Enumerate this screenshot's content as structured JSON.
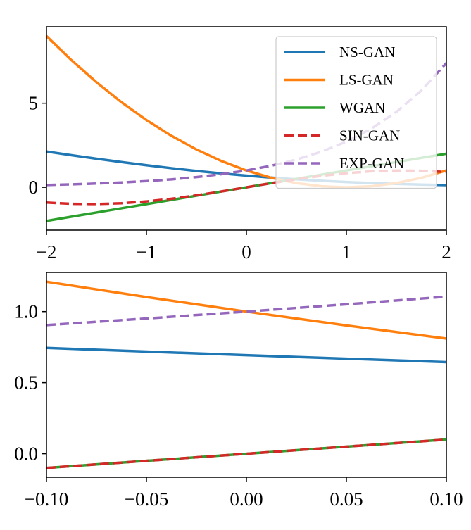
{
  "chart_data": [
    {
      "type": "line",
      "x": [
        -2,
        -1.75,
        -1.5,
        -1.25,
        -1,
        -0.75,
        -0.5,
        -0.25,
        0,
        0.25,
        0.5,
        0.75,
        1,
        1.25,
        1.5,
        1.75,
        2
      ],
      "series": [
        {
          "name": "NS-GAN",
          "color": "#1f77b4",
          "linestyle": "solid",
          "values": [
            2.127,
            1.91,
            1.701,
            1.502,
            1.313,
            1.137,
            0.974,
            0.826,
            0.693,
            0.576,
            0.474,
            0.387,
            0.313,
            0.252,
            0.201,
            0.16,
            0.127
          ]
        },
        {
          "name": "LS-GAN",
          "color": "#ff7f0e",
          "linestyle": "solid",
          "values": [
            9,
            7.5625,
            6.25,
            5.0625,
            4,
            3.0625,
            2.25,
            1.5625,
            1,
            0.5625,
            0.25,
            0.0625,
            0,
            0.0625,
            0.25,
            0.5625,
            1
          ]
        },
        {
          "name": "WGAN",
          "color": "#2ca02c",
          "linestyle": "solid",
          "values": [
            -2,
            -1.75,
            -1.5,
            -1.25,
            -1,
            -0.75,
            -0.5,
            -0.25,
            0,
            0.25,
            0.5,
            0.75,
            1,
            1.25,
            1.5,
            1.75,
            2
          ]
        },
        {
          "name": "SIN-GAN",
          "color": "#d62728",
          "linestyle": "dashed",
          "values": [
            -0.909,
            -0.984,
            -0.997,
            -0.949,
            -0.841,
            -0.682,
            -0.479,
            -0.247,
            0,
            0.247,
            0.479,
            0.682,
            0.841,
            0.949,
            0.997,
            0.984,
            0.909
          ]
        },
        {
          "name": "EXP-GAN",
          "color": "#9467bd",
          "linestyle": "dashed",
          "values": [
            0.135,
            0.174,
            0.223,
            0.287,
            0.368,
            0.472,
            0.607,
            0.779,
            1,
            1.284,
            1.649,
            2.117,
            2.718,
            3.49,
            4.482,
            5.755,
            7.389
          ]
        }
      ],
      "xlim": [
        -2,
        2
      ],
      "xticks": [
        {
          "value": -2,
          "label": "−2"
        },
        {
          "value": -1,
          "label": "−1"
        },
        0,
        1,
        2
      ],
      "ylim": [
        -2.55,
        9.55
      ],
      "yticks": [
        0,
        5
      ],
      "legend": "upper right"
    },
    {
      "type": "line",
      "x": [
        -0.1,
        -0.05,
        0,
        0.05,
        0.1
      ],
      "series": [
        {
          "color": "#1f77b4",
          "linestyle": "solid",
          "values": [
            0.7444,
            0.7186,
            0.6931,
            0.6685,
            0.6444
          ]
        },
        {
          "color": "#ff7f0e",
          "linestyle": "solid",
          "values": [
            1.21,
            1.1025,
            1,
            0.9025,
            0.81
          ]
        },
        {
          "color": "#2ca02c",
          "linestyle": "solid",
          "values": [
            -0.1,
            -0.05,
            0,
            0.05,
            0.1
          ]
        },
        {
          "color": "#d62728",
          "linestyle": "dashed",
          "values": [
            -0.0998,
            -0.05,
            0,
            0.05,
            0.0998
          ]
        },
        {
          "color": "#9467bd",
          "linestyle": "dashed",
          "values": [
            0.9048,
            0.9512,
            1,
            1.0513,
            1.1052
          ]
        }
      ],
      "xlim": [
        -0.1,
        0.1
      ],
      "xticks": [
        {
          "value": -0.1,
          "label": "−0.10"
        },
        {
          "value": -0.05,
          "label": "−0.05"
        },
        {
          "value": 0,
          "label": "0.00"
        },
        {
          "value": 0.05,
          "label": "0.05"
        },
        {
          "value": 0.1,
          "label": "0.10"
        }
      ],
      "ylim": [
        -0.1655,
        1.2758
      ],
      "yticks": [
        {
          "value": 0,
          "label": "0.0"
        },
        {
          "value": 0.5,
          "label": "0.5"
        },
        {
          "value": 1,
          "label": "1.0"
        }
      ]
    }
  ]
}
